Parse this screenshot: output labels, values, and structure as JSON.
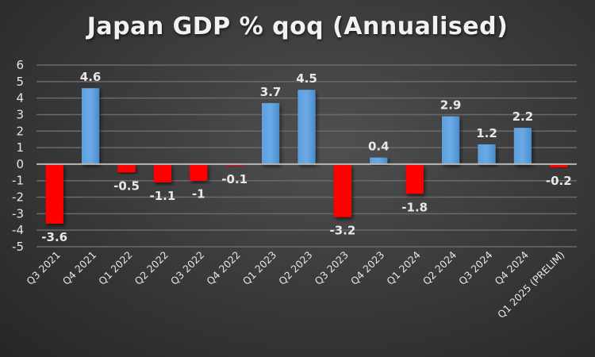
{
  "chart_data": {
    "type": "bar",
    "title": "Japan GDP % qoq (Annualised)",
    "xlabel": "",
    "ylabel": "",
    "ylim": [
      -5,
      6
    ],
    "yticks": [
      6,
      5,
      4,
      3,
      2,
      1,
      0,
      -1,
      -2,
      -3,
      -4,
      -5
    ],
    "grid": true,
    "legend": "none",
    "categories": [
      "Q3 2021",
      "Q4 2021",
      "Q1 2022",
      "Q2 2022",
      "Q3 2022",
      "Q4 2022",
      "Q1 2023",
      "Q2 2023",
      "Q3 2023",
      "Q4 2023",
      "Q1 2024",
      "Q2 2024",
      "Q3 2024",
      "Q4 2024",
      "Q1 2025 (PRELIM)"
    ],
    "values": [
      -3.6,
      4.6,
      -0.5,
      -1.1,
      -1,
      -0.1,
      3.7,
      4.5,
      -3.2,
      0.4,
      -1.8,
      2.9,
      1.2,
      2.2,
      -0.2
    ],
    "data_labels": [
      "-3.6",
      "4.6",
      "-0.5",
      "-1.1",
      "-1",
      "-0.1",
      "3.7",
      "4.5",
      "-3.2",
      "0.4",
      "-1.8",
      "2.9",
      "1.2",
      "2.2",
      "-0.2"
    ],
    "colors": {
      "positive": "#5b9bd5",
      "negative": "#ff0000"
    }
  }
}
